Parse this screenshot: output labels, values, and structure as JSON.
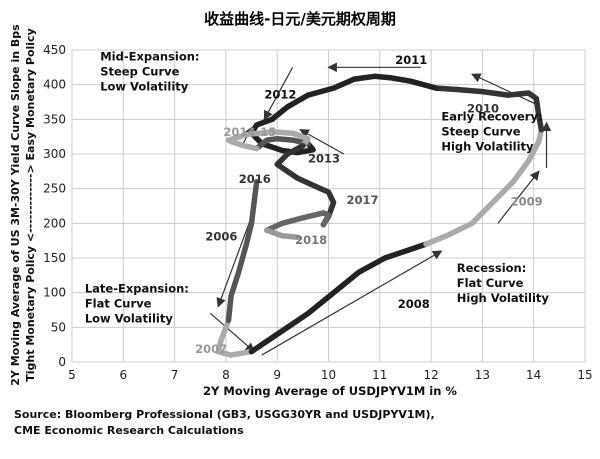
{
  "chart_data": {
    "type": "line",
    "title": "收益曲线-日元/美元期权周期",
    "xlabel": "2Y Moving Average of USDJPYV1M in %",
    "ylabel_lines": [
      "2Y Moving Average of US 3M-30Y Yield Curve Slope in Bps",
      "Tight Monetary Policy <-------------> Easy Monetary Policy"
    ],
    "xlim": [
      5,
      15
    ],
    "ylim": [
      0,
      450
    ],
    "xticks": [
      5,
      6,
      7,
      8,
      9,
      10,
      11,
      12,
      13,
      14,
      15
    ],
    "yticks": [
      0,
      50,
      100,
      150,
      200,
      250,
      300,
      350,
      400,
      450
    ],
    "grid": true,
    "series": [
      {
        "name": "2007",
        "color": "#aaaaaa",
        "points": [
          [
            8.05,
            60
          ],
          [
            7.9,
            30
          ],
          [
            7.85,
            15
          ],
          [
            8.1,
            10
          ],
          [
            8.5,
            15
          ]
        ]
      },
      {
        "name": "2008",
        "color": "#222222",
        "points": [
          [
            8.5,
            15
          ],
          [
            8.8,
            30
          ],
          [
            9.2,
            50
          ],
          [
            9.6,
            70
          ],
          [
            10.1,
            100
          ],
          [
            10.6,
            130
          ],
          [
            11.1,
            150
          ],
          [
            11.5,
            160
          ],
          [
            11.9,
            170
          ]
        ]
      },
      {
        "name": "2009",
        "color": "#aaaaaa",
        "points": [
          [
            11.9,
            170
          ],
          [
            12.3,
            182
          ],
          [
            12.8,
            200
          ],
          [
            13.2,
            230
          ],
          [
            13.6,
            260
          ],
          [
            13.9,
            290
          ],
          [
            14.1,
            318
          ],
          [
            14.15,
            335
          ]
        ]
      },
      {
        "name": "2010",
        "color": "#333333",
        "points": [
          [
            14.15,
            335
          ],
          [
            14.1,
            355
          ],
          [
            14.05,
            380
          ],
          [
            13.9,
            388
          ],
          [
            13.5,
            385
          ],
          [
            13.0,
            390
          ],
          [
            12.5,
            393
          ],
          [
            12.1,
            395
          ]
        ]
      },
      {
        "name": "2011",
        "color": "#222222",
        "points": [
          [
            12.1,
            395
          ],
          [
            11.6,
            405
          ],
          [
            11.2,
            410
          ],
          [
            10.9,
            412
          ],
          [
            10.5,
            408
          ],
          [
            10.1,
            395
          ],
          [
            9.6,
            385
          ],
          [
            9.2,
            368
          ],
          [
            8.9,
            350
          ]
        ]
      },
      {
        "name": "2012",
        "color": "#222222",
        "points": [
          [
            8.9,
            350
          ],
          [
            8.6,
            342
          ],
          [
            8.5,
            330
          ],
          [
            8.7,
            315
          ],
          [
            9.1,
            305
          ],
          [
            9.4,
            302
          ],
          [
            9.7,
            306
          ],
          [
            9.6,
            315
          ]
        ]
      },
      {
        "name": "2013",
        "color": "#555555",
        "points": [
          [
            9.6,
            315
          ],
          [
            9.3,
            320
          ],
          [
            9.0,
            322
          ],
          [
            8.8,
            320
          ],
          [
            8.6,
            308
          ]
        ]
      },
      {
        "name": "2014-15",
        "color": "#aaaaaa",
        "points": [
          [
            8.6,
            308
          ],
          [
            8.35,
            312
          ],
          [
            8.1,
            318
          ],
          [
            8.05,
            320
          ],
          [
            8.4,
            328
          ],
          [
            8.9,
            332
          ],
          [
            9.3,
            330
          ],
          [
            9.6,
            322
          ],
          [
            9.5,
            312
          ]
        ]
      },
      {
        "name": "2016",
        "color": "#333333",
        "points": [
          [
            9.5,
            312
          ],
          [
            9.2,
            300
          ],
          [
            9.0,
            285
          ],
          [
            9.4,
            265
          ],
          [
            9.85,
            250
          ],
          [
            10.0,
            245
          ],
          [
            10.1,
            230
          ],
          [
            10.0,
            210
          ],
          [
            9.9,
            198
          ]
        ]
      },
      {
        "name": "2017",
        "color": "#666666",
        "points": [
          [
            9.9,
            198
          ],
          [
            10.0,
            212
          ],
          [
            9.9,
            215
          ],
          [
            9.5,
            208
          ],
          [
            9.1,
            200
          ],
          [
            8.8,
            190
          ]
        ]
      },
      {
        "name": "2018",
        "color": "#999999",
        "points": [
          [
            8.8,
            190
          ],
          [
            9.1,
            182
          ],
          [
            9.4,
            180
          ]
        ]
      },
      {
        "name": "2006",
        "color": "#555555",
        "points": [
          [
            8.6,
            260
          ],
          [
            8.55,
            230
          ],
          [
            8.5,
            200
          ],
          [
            8.4,
            170
          ],
          [
            8.25,
            130
          ],
          [
            8.1,
            95
          ],
          [
            8.05,
            60
          ]
        ]
      }
    ],
    "arrows": [
      {
        "from": [
          10.3,
          300
        ],
        "to": [
          9.45,
          335
        ]
      },
      {
        "from": [
          8.5,
          210
        ],
        "to": [
          7.85,
          80
        ]
      },
      {
        "from": [
          7.7,
          70
        ],
        "to": [
          8.55,
          15
        ]
      },
      {
        "from": [
          8.7,
          10
        ],
        "to": [
          12.2,
          160
        ]
      },
      {
        "from": [
          13.3,
          200
        ],
        "to": [
          14.1,
          275
        ]
      },
      {
        "from": [
          14.25,
          280
        ],
        "to": [
          14.25,
          345
        ]
      },
      {
        "from": [
          14.1,
          370
        ],
        "to": [
          12.8,
          415
        ]
      },
      {
        "from": [
          11.8,
          425
        ],
        "to": [
          10.0,
          425
        ]
      },
      {
        "from": [
          9.3,
          425
        ],
        "to": [
          8.75,
          350
        ]
      },
      {
        "from": [
          8.3,
          310
        ],
        "to": [
          8.5,
          338
        ]
      }
    ],
    "series_labels": [
      {
        "text": "2011",
        "x": 11.3,
        "y": 430,
        "color": "#111111"
      },
      {
        "text": "2012",
        "x": 8.75,
        "y": 380,
        "color": "#111111"
      },
      {
        "text": "2010",
        "x": 12.7,
        "y": 360,
        "color": "#333333"
      },
      {
        "text": "2014-15",
        "x": 7.95,
        "y": 326,
        "color": "#999999"
      },
      {
        "text": "2013",
        "x": 9.6,
        "y": 288,
        "color": "#333333"
      },
      {
        "text": "2016",
        "x": 8.25,
        "y": 258,
        "color": "#333333"
      },
      {
        "text": "2017",
        "x": 10.35,
        "y": 228,
        "color": "#555555"
      },
      {
        "text": "2009",
        "x": 13.55,
        "y": 226,
        "color": "#888888"
      },
      {
        "text": "2018",
        "x": 9.35,
        "y": 170,
        "color": "#777777"
      },
      {
        "text": "2006",
        "x": 7.6,
        "y": 175,
        "color": "#333333"
      },
      {
        "text": "2008",
        "x": 11.35,
        "y": 78,
        "color": "#111111"
      },
      {
        "text": "2007",
        "x": 7.4,
        "y": 13,
        "color": "#999999"
      }
    ],
    "annotations": [
      {
        "lines": [
          "Mid-Expansion:",
          "Steep Curve",
          "Low Volatility"
        ],
        "x": 5.55,
        "y": 435
      },
      {
        "lines": [
          "Early Recovery:",
          "Steep Curve",
          "High Volatility"
        ],
        "x": 12.2,
        "y": 348
      },
      {
        "lines": [
          "Late-Expansion:",
          "Flat Curve",
          "Low Volatility"
        ],
        "x": 5.25,
        "y": 100
      },
      {
        "lines": [
          "Recession:",
          "Flat Curve",
          "High Volatility"
        ],
        "x": 12.5,
        "y": 130
      }
    ]
  },
  "source_lines": [
    "Source: Bloomberg Professional (GB3, USGG30YR and USDJPYV1M),",
    "CME Economic Research Calculations"
  ]
}
